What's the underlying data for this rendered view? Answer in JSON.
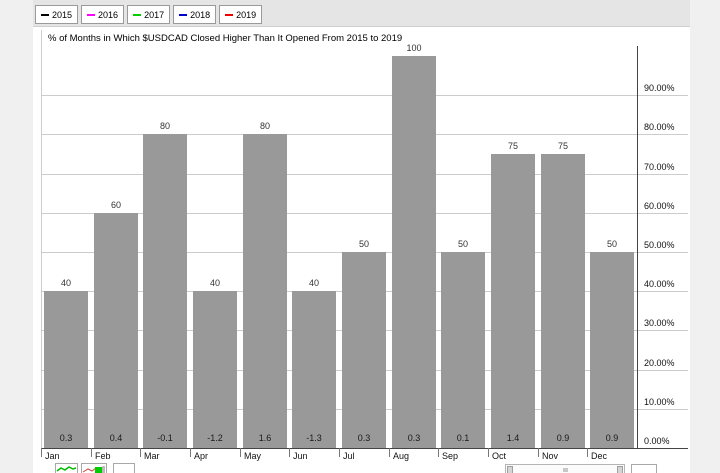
{
  "legend": {
    "dash_glyph": "–",
    "series": [
      {
        "label": "2015",
        "color": "#000000"
      },
      {
        "label": "2016",
        "color": "#ff00ff"
      },
      {
        "label": "2017",
        "color": "#00cc00"
      },
      {
        "label": "2018",
        "color": "#0000cc"
      },
      {
        "label": "2019",
        "color": "#ee0000"
      }
    ]
  },
  "chart_data": {
    "type": "bar",
    "title": "% of Months in Which $USDCAD Closed Higher Than It Opened From 2015 to 2019",
    "categories": [
      "Jan",
      "Feb",
      "Mar",
      "Apr",
      "May",
      "Jun",
      "Jul",
      "Aug",
      "Sep",
      "Oct",
      "Nov",
      "Dec"
    ],
    "values": [
      40,
      60,
      80,
      40,
      80,
      40,
      50,
      100,
      50,
      75,
      75,
      50
    ],
    "bar_value_labels": [
      "40",
      "60",
      "80",
      "40",
      "80",
      "40",
      "50",
      "100",
      "50",
      "75",
      "75",
      "50"
    ],
    "footer_values": [
      "0.3",
      "0.4",
      "-0.1",
      "-1.2",
      "1.6",
      "-1.3",
      "0.3",
      "0.3",
      "0.1",
      "1.4",
      "0.9",
      "0.9"
    ],
    "bar_color": "#999999",
    "y_axis": {
      "side": "right",
      "ylim": [
        0,
        100
      ],
      "tick_step": 10,
      "tick_labels": [
        "0.00%",
        "10.00%",
        "20.00%",
        "30.00%",
        "40.00%",
        "50.00%",
        "60.00%",
        "70.00%",
        "80.00%",
        "90.00%"
      ],
      "grid": true
    },
    "legend_position": "top"
  }
}
